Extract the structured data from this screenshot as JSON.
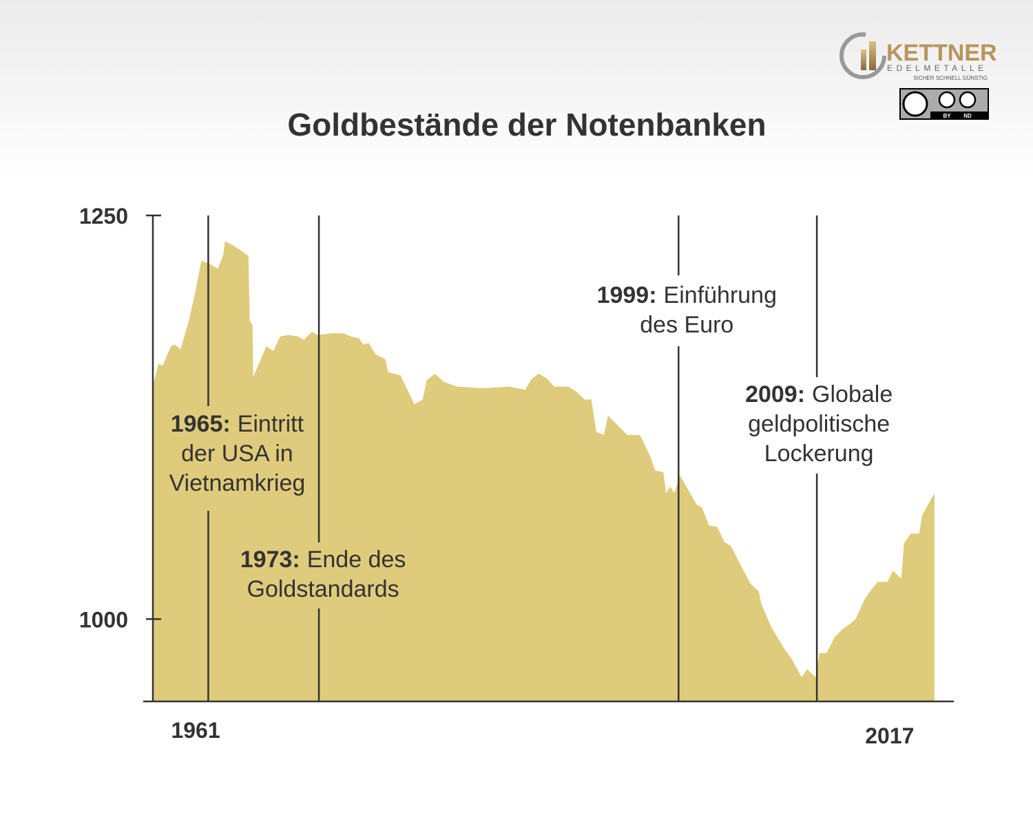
{
  "chart_data": {
    "type": "area",
    "title": "Goldbestände der Notenbanken",
    "color": "#dfcb7c",
    "xlim": [
      1960.3,
      2018.9
    ],
    "ylim": [
      949,
      1250
    ],
    "xticks": [
      1961,
      2017
    ],
    "yticks": [
      1000,
      1250
    ],
    "series": [
      {
        "x": [
          1961.0,
          1961.4,
          1961.7,
          1962.3,
          1962.6,
          1963.0,
          1963.6,
          1964.1,
          1964.5,
          1965.1,
          1965.7,
          1966.1,
          1966.2,
          1966.9,
          1967.9,
          1968.0,
          1968.2,
          1968.25,
          1969.2,
          1969.7,
          1970.2,
          1970.8,
          1971.5,
          1971.9,
          1972.5,
          1972.9,
          1973.9,
          1974.8,
          1975.3,
          1975.9,
          1976.2,
          1976.6,
          1977.1,
          1977.8,
          1978.0,
          1978.9,
          1979.9,
          1980.5,
          1980.8,
          1981.4,
          1982.0,
          1983.0,
          1984.8,
          1986.8,
          1987.9,
          1988.4,
          1988.9,
          1989.5,
          1990.0,
          1991.0,
          1991.6,
          1992.2,
          1992.7,
          1993.05,
          1993.6,
          1993.9,
          1995.3,
          1996.2,
          1996.5,
          1997.0,
          1997.3,
          1997.9,
          1998.1,
          1998.4,
          1998.7,
          1999.1,
          1999.7,
          2000.3,
          2000.7,
          2001.2,
          2001.8,
          2002.3,
          2002.8,
          2003.7,
          2004.2,
          2004.8,
          2005.0,
          2005.7,
          2006.7,
          2007.2,
          2007.9,
          2008.3,
          2008.9,
          2009.2,
          2009.7,
          2010.3,
          2010.9,
          2011.4,
          2011.8,
          2012.5,
          2013.0,
          2013.4,
          2014.1,
          2014.5,
          2015.1,
          2015.3,
          2015.8,
          2016.4,
          2016.6,
          2017.5
        ],
        "values": [
          1145,
          1158,
          1157,
          1169,
          1170,
          1167,
          1185,
          1204,
          1222,
          1220,
          1217,
          1226,
          1234,
          1231,
          1225,
          1185,
          1182,
          1150,
          1169,
          1166,
          1175,
          1176,
          1175,
          1173,
          1178,
          1176,
          1177,
          1177,
          1175,
          1174,
          1170,
          1171,
          1164,
          1161,
          1153,
          1151,
          1133,
          1136,
          1148,
          1152,
          1147,
          1144,
          1143,
          1144,
          1142,
          1149,
          1152,
          1149,
          1144,
          1144,
          1141,
          1136,
          1136,
          1116,
          1114,
          1126,
          1114,
          1114,
          1109,
          1100,
          1092,
          1091,
          1078,
          1082,
          1078,
          1089,
          1080,
          1071,
          1069,
          1058,
          1057,
          1048,
          1045,
          1030,
          1022,
          1017,
          1009,
          995,
          981,
          975,
          964,
          969,
          964,
          979,
          979,
          989,
          994,
          997,
          1000,
          1013,
          1019,
          1023,
          1023,
          1030,
          1025,
          1047,
          1053,
          1053,
          1064,
          1078
        ]
      }
    ],
    "annotations": [
      {
        "x": 1965,
        "bold": "1965:",
        "lines": [
          "Eintritt",
          "der USA in",
          "Vietnamkrieg"
        ]
      },
      {
        "x": 1973,
        "bold": "1973:",
        "lines": [
          "Ende des",
          "Goldstandards"
        ]
      },
      {
        "x": 1999,
        "bold": "1999:",
        "lines": [
          "Einführung",
          "des Euro"
        ]
      },
      {
        "x": 2009,
        "bold": "2009:",
        "lines": [
          "Globale",
          "geldpolitische",
          "Lockerung"
        ]
      }
    ]
  },
  "logo": {
    "name": "KETTNER",
    "sub": "EDELMETALLE",
    "slogan": "SICHER SCHNELL GÜNSTIG",
    "license": [
      "BY",
      "ND"
    ]
  }
}
